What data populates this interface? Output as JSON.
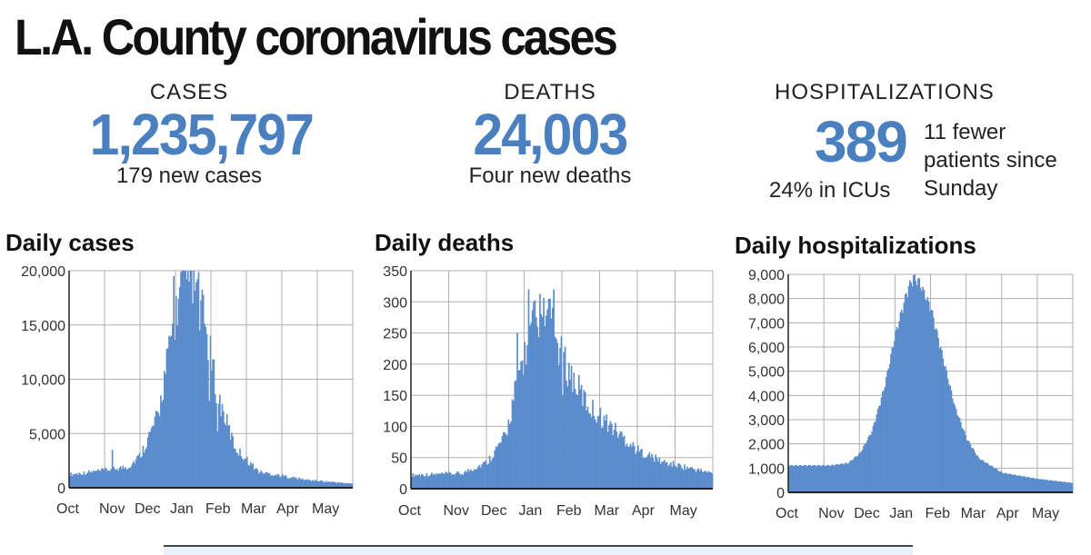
{
  "title": "L.A. County coronavirus cases",
  "stats": {
    "cases": {
      "label": "CASES",
      "value": "1,235,797",
      "sub": "179 new cases"
    },
    "deaths": {
      "label": "DEATHS",
      "value": "24,003",
      "sub": "Four new deaths"
    },
    "hospitalizations": {
      "label": "HOSPITALIZATIONS",
      "value": "389",
      "sub": "24% in ICUs",
      "note": "11 fewer patients since Sunday"
    }
  },
  "colors": {
    "accent": "#4a7fc0",
    "bar": "#5b8ccc",
    "grid": "#b0b0b0"
  },
  "chart_data": [
    {
      "type": "bar",
      "title": "Daily cases",
      "x": [
        "Oct",
        "Nov",
        "Dec",
        "Jan",
        "Feb",
        "Mar",
        "Apr",
        "May"
      ],
      "yticks": [
        0,
        5000,
        10000,
        15000,
        20000
      ],
      "ytick_labels": [
        "0",
        "5,000",
        "10,000",
        "15,000",
        "20,000"
      ],
      "ylim": [
        0,
        20000
      ],
      "grid": true,
      "profile": [
        [
          0,
          1000
        ],
        [
          28,
          1300
        ],
        [
          50,
          1600
        ],
        [
          60,
          2500
        ],
        [
          75,
          5500
        ],
        [
          85,
          11000
        ],
        [
          95,
          15500
        ],
        [
          105,
          16000
        ],
        [
          115,
          12000
        ],
        [
          125,
          7000
        ],
        [
          140,
          3000
        ],
        [
          160,
          1200
        ],
        [
          200,
          600
        ],
        [
          240,
          300
        ]
      ],
      "spikes": [
        [
          36,
          3500
        ],
        [
          84,
          14000
        ],
        [
          88,
          19500
        ],
        [
          93,
          18500
        ],
        [
          97,
          20000
        ],
        [
          101,
          19000
        ],
        [
          104,
          17000
        ],
        [
          110,
          14500
        ],
        [
          118,
          8000
        ],
        [
          125,
          5200
        ]
      ]
    },
    {
      "type": "bar",
      "title": "Daily deaths",
      "x": [
        "Oct",
        "Nov",
        "Dec",
        "Jan",
        "Feb",
        "Mar",
        "Apr",
        "May"
      ],
      "yticks": [
        0,
        50,
        100,
        150,
        200,
        250,
        300,
        350
      ],
      "ytick_labels": [
        "0",
        "50",
        "100",
        "150",
        "200",
        "250",
        "300",
        "350"
      ],
      "ylim": [
        0,
        350
      ],
      "grid": true,
      "profile": [
        [
          0,
          18
        ],
        [
          40,
          20
        ],
        [
          60,
          35
        ],
        [
          75,
          70
        ],
        [
          85,
          150
        ],
        [
          100,
          230
        ],
        [
          110,
          220
        ],
        [
          120,
          170
        ],
        [
          140,
          110
        ],
        [
          160,
          80
        ],
        [
          180,
          50
        ],
        [
          200,
          35
        ],
        [
          240,
          20
        ]
      ],
      "spikes": [
        [
          84,
          250
        ],
        [
          93,
          320
        ],
        [
          97,
          300
        ],
        [
          100,
          260
        ],
        [
          103,
          280
        ],
        [
          110,
          305
        ],
        [
          113,
          320
        ],
        [
          120,
          150
        ],
        [
          130,
          160
        ]
      ]
    },
    {
      "type": "area",
      "title": "Daily hospitalizations",
      "x": [
        "Oct",
        "Nov",
        "Dec",
        "Jan",
        "Feb",
        "Mar",
        "Apr",
        "May"
      ],
      "yticks": [
        0,
        1000,
        2000,
        3000,
        4000,
        5000,
        6000,
        7000,
        8000,
        9000
      ],
      "ytick_labels": [
        "0",
        "1,000",
        "2,000",
        "3,000",
        "4,000",
        "5,000",
        "6,000",
        "7,000",
        "8,000",
        "9,000"
      ],
      "ylim": [
        0,
        9000
      ],
      "grid": true,
      "profile": [
        [
          0,
          1100
        ],
        [
          20,
          1100
        ],
        [
          35,
          1100
        ],
        [
          50,
          1200
        ],
        [
          60,
          1600
        ],
        [
          70,
          2500
        ],
        [
          80,
          4200
        ],
        [
          90,
          6500
        ],
        [
          100,
          8300
        ],
        [
          105,
          8800
        ],
        [
          110,
          8600
        ],
        [
          120,
          7500
        ],
        [
          130,
          5500
        ],
        [
          140,
          3500
        ],
        [
          150,
          2200
        ],
        [
          160,
          1400
        ],
        [
          180,
          800
        ],
        [
          210,
          550
        ],
        [
          240,
          380
        ]
      ],
      "spikes": []
    }
  ]
}
